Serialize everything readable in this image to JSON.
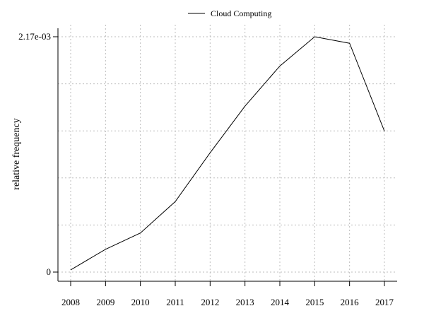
{
  "chart_data": {
    "type": "line",
    "title": "",
    "xlabel": "",
    "ylabel": "relative frequency",
    "x": [
      2008,
      2009,
      2010,
      2011,
      2012,
      2013,
      2014,
      2015,
      2016,
      2017
    ],
    "series": [
      {
        "name": "Cloud Computing",
        "color": "#000000",
        "values": [
          2e-05,
          0.00021,
          0.00036,
          0.00065,
          0.0011,
          0.00153,
          0.0019,
          0.00217,
          0.00211,
          0.0013
        ]
      }
    ],
    "xlim": [
      2008,
      2017
    ],
    "ylim": [
      0,
      0.00217
    ],
    "x_ticks": [
      2008,
      2009,
      2010,
      2011,
      2012,
      2013,
      2014,
      2015,
      2016,
      2017
    ],
    "y_tick_labels": [
      {
        "value": 0,
        "label": "0"
      },
      {
        "value": 0.00217,
        "label": "2.17e-03"
      }
    ],
    "grid": true,
    "legend_position": "top-center"
  }
}
